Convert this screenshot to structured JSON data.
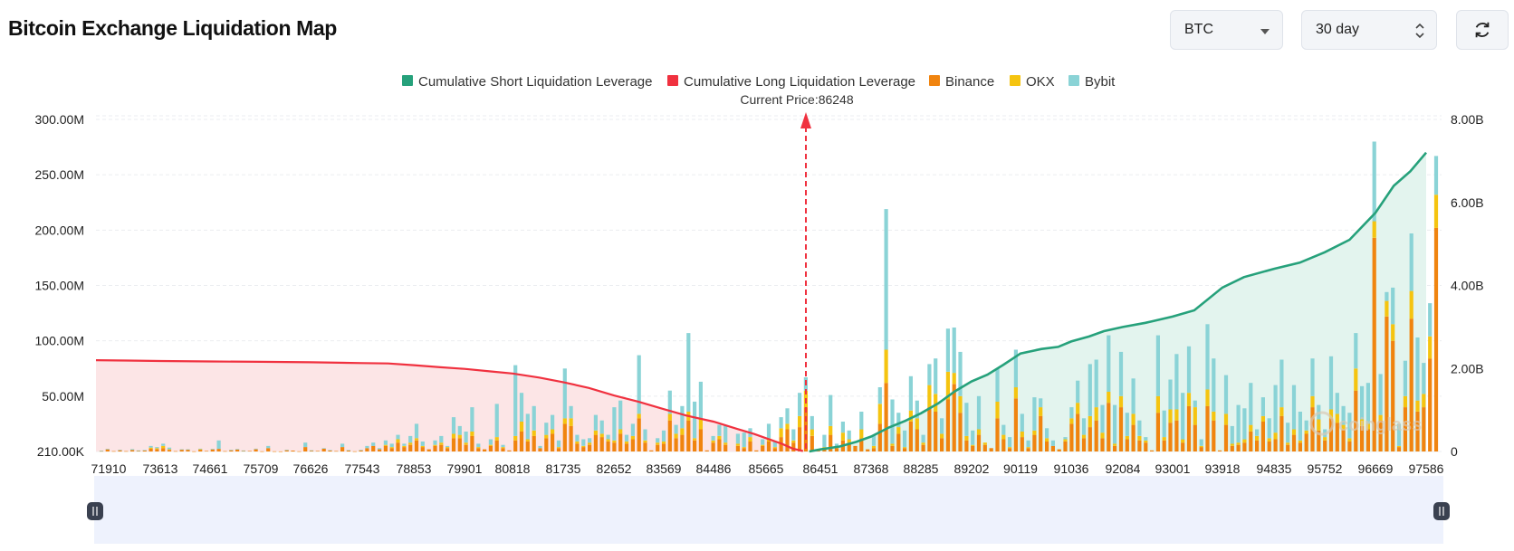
{
  "header": {
    "title": "Bitcoin Exchange Liquidation Map"
  },
  "controls": {
    "asset": "BTC",
    "period": "30 day",
    "refresh_icon": "refresh-icon"
  },
  "legend": [
    {
      "label": "Cumulative Short Liquidation Leverage",
      "color": "#26a17b"
    },
    {
      "label": "Cumulative Long Liquidation Leverage",
      "color": "#f0313f"
    },
    {
      "label": "Binance",
      "color": "#f0840f"
    },
    {
      "label": "OKX",
      "color": "#f5c410"
    },
    {
      "label": "Bybit",
      "color": "#8ad3d6"
    }
  ],
  "current_price_label": "Current Price:86248",
  "watermark": "coinglass",
  "chart_data": {
    "type": "bar",
    "x_tick_labels": [
      "71910",
      "73613",
      "74661",
      "75709",
      "76626",
      "77543",
      "78853",
      "79901",
      "80818",
      "81735",
      "82652",
      "83569",
      "84486",
      "85665",
      "86451",
      "87368",
      "88285",
      "89202",
      "90119",
      "91036",
      "92084",
      "93001",
      "93918",
      "94835",
      "95752",
      "96669",
      "97586"
    ],
    "left_axis_labels": [
      "210.00K",
      "50.00M",
      "100.00M",
      "150.00M",
      "200.00M",
      "250.00M",
      "300.00M"
    ],
    "right_axis_labels": [
      "0",
      "2.00B",
      "4.00B",
      "6.00B",
      "8.00B"
    ],
    "left_ylim": [
      0,
      300
    ],
    "left_unit": "M",
    "right_ylim": [
      0,
      8
    ],
    "right_unit": "B",
    "current_price": 86248,
    "bars": [
      [
        0.4,
        0,
        0.3
      ],
      [
        2,
        0,
        0.4
      ],
      [
        0.3,
        0,
        0
      ],
      [
        1.1,
        0,
        0.5
      ],
      [
        0.3,
        0,
        0
      ],
      [
        1.3,
        0,
        0.8
      ],
      [
        0.7,
        0,
        0.3
      ],
      [
        0.9,
        0,
        0.4
      ],
      [
        2.5,
        1,
        1.5
      ],
      [
        2,
        1,
        1
      ],
      [
        3,
        2,
        2
      ],
      [
        1.5,
        0.5,
        1.5
      ],
      [
        0.3,
        0,
        0
      ],
      [
        1.7,
        0,
        0.3
      ],
      [
        1.7,
        0,
        0.3
      ],
      [
        0.2,
        0,
        0
      ],
      [
        1.6,
        0.4,
        0.5
      ],
      [
        0.5,
        0,
        0
      ],
      [
        1.9,
        0,
        0.5
      ],
      [
        2.4,
        0,
        7.6
      ],
      [
        0.3,
        0,
        0
      ],
      [
        1.2,
        0,
        0.3
      ],
      [
        2,
        0,
        0.2
      ],
      [
        0.7,
        0,
        0.2
      ],
      [
        0.5,
        0,
        0
      ],
      [
        2,
        0,
        0.5
      ],
      [
        0.2,
        0,
        0
      ],
      [
        3,
        0,
        2
      ],
      [
        0.2,
        0,
        0
      ],
      [
        0.1,
        0,
        0
      ],
      [
        1.3,
        0,
        0.2
      ],
      [
        0.8,
        0,
        0
      ],
      [
        0.2,
        0,
        0
      ],
      [
        4,
        0,
        4
      ],
      [
        0.9,
        0,
        0.2
      ],
      [
        0.5,
        0,
        0
      ],
      [
        2.5,
        0,
        0.5
      ],
      [
        1.1,
        0,
        0.2
      ],
      [
        0.4,
        0,
        0
      ],
      [
        4,
        0,
        3
      ],
      [
        1,
        0,
        0.3
      ],
      [
        0.2,
        0,
        0
      ],
      [
        1.2,
        0,
        0.2
      ],
      [
        3,
        0,
        2
      ],
      [
        5,
        0,
        3
      ],
      [
        2,
        0,
        1
      ],
      [
        5,
        1,
        4
      ],
      [
        3,
        1,
        3
      ],
      [
        8,
        3,
        4
      ],
      [
        4,
        1,
        2
      ],
      [
        6,
        2,
        6
      ],
      [
        10,
        2,
        13
      ],
      [
        4,
        1,
        4
      ],
      [
        2,
        0,
        0
      ],
      [
        5,
        1,
        4
      ],
      [
        6,
        2,
        6
      ],
      [
        3,
        1,
        1
      ],
      [
        12,
        4,
        15
      ],
      [
        12,
        3,
        8
      ],
      [
        6,
        2,
        10
      ],
      [
        14,
        4,
        22
      ],
      [
        3,
        1,
        3
      ],
      [
        2,
        0,
        0
      ],
      [
        5,
        1,
        5
      ],
      [
        10,
        3,
        30
      ],
      [
        3,
        1,
        2
      ],
      [
        1,
        0,
        0
      ],
      [
        10,
        4,
        64
      ],
      [
        18,
        9,
        26
      ],
      [
        9,
        2,
        23
      ],
      [
        14,
        5,
        22
      ],
      [
        3,
        0,
        2
      ],
      [
        12,
        3,
        11
      ],
      [
        16,
        4,
        13
      ],
      [
        3,
        1,
        6
      ],
      [
        25,
        5,
        45
      ],
      [
        23,
        7,
        11
      ],
      [
        7,
        2,
        6
      ],
      [
        4,
        1,
        6
      ],
      [
        6,
        2,
        4
      ],
      [
        15,
        4,
        14
      ],
      [
        13,
        3,
        12
      ],
      [
        9,
        2,
        4
      ],
      [
        8,
        2,
        30
      ],
      [
        16,
        4,
        26
      ],
      [
        7,
        2,
        6
      ],
      [
        11,
        3,
        11
      ],
      [
        30,
        4,
        53
      ],
      [
        8,
        2,
        10
      ],
      [
        1,
        0,
        0
      ],
      [
        6,
        2,
        4
      ],
      [
        7,
        2,
        10
      ],
      [
        28,
        6,
        21
      ],
      [
        12,
        4,
        8
      ],
      [
        15,
        6,
        20
      ],
      [
        28,
        8,
        71
      ],
      [
        10,
        2,
        33
      ],
      [
        20,
        10,
        33
      ],
      [
        1,
        0,
        0
      ],
      [
        8,
        2,
        4
      ],
      [
        11,
        3,
        10
      ],
      [
        6,
        2,
        16
      ],
      [
        0,
        0,
        0
      ],
      [
        5,
        2,
        9
      ],
      [
        3,
        1,
        13
      ],
      [
        9,
        4,
        8
      ],
      [
        1,
        0,
        0
      ],
      [
        5,
        1,
        5
      ],
      [
        9,
        3,
        13
      ],
      [
        3,
        1,
        5
      ],
      [
        13,
        8,
        10
      ],
      [
        20,
        5,
        14
      ],
      [
        8,
        2,
        10
      ],
      [
        22,
        10,
        21
      ],
      [
        40,
        15,
        12
      ],
      [
        14,
        6,
        12
      ],
      [
        1,
        0,
        0
      ],
      [
        3,
        1,
        11
      ],
      [
        15,
        8,
        28
      ],
      [
        3,
        1,
        3
      ],
      [
        10,
        7,
        10
      ],
      [
        8,
        3,
        8
      ],
      [
        5,
        0,
        0
      ],
      [
        12,
        8,
        16
      ],
      [
        2,
        0,
        0
      ],
      [
        3,
        2,
        10
      ],
      [
        25,
        18,
        15
      ],
      [
        62,
        30,
        127
      ],
      [
        5,
        2,
        40
      ],
      [
        16,
        6,
        13
      ],
      [
        3,
        1,
        15
      ],
      [
        27,
        10,
        31
      ],
      [
        20,
        10,
        16
      ],
      [
        6,
        2,
        7
      ],
      [
        40,
        20,
        19
      ],
      [
        36,
        16,
        32
      ],
      [
        12,
        4,
        14
      ],
      [
        47,
        25,
        39
      ],
      [
        61,
        10,
        41
      ],
      [
        35,
        15,
        40
      ],
      [
        10,
        4,
        30
      ],
      [
        5,
        1,
        13
      ],
      [
        15,
        5,
        30
      ],
      [
        6,
        2,
        0
      ],
      [
        3,
        0,
        0
      ],
      [
        30,
        15,
        30
      ],
      [
        11,
        4,
        9
      ],
      [
        3,
        1,
        9
      ],
      [
        48,
        10,
        34
      ],
      [
        13,
        5,
        16
      ],
      [
        3,
        1,
        6
      ],
      [
        15,
        4,
        30
      ],
      [
        32,
        8,
        8
      ],
      [
        9,
        3,
        9
      ],
      [
        5,
        0,
        5
      ],
      [
        2,
        0,
        0
      ],
      [
        9,
        2,
        2
      ],
      [
        25,
        5,
        10
      ],
      [
        34,
        10,
        20
      ],
      [
        12,
        3,
        15
      ],
      [
        22,
        10,
        47
      ],
      [
        28,
        12,
        43
      ],
      [
        12,
        5,
        25
      ],
      [
        44,
        10,
        51
      ],
      [
        5,
        2,
        35
      ],
      [
        40,
        10,
        40
      ],
      [
        11,
        3,
        21
      ],
      [
        24,
        10,
        32
      ],
      [
        10,
        4,
        14
      ],
      [
        8,
        2,
        3
      ],
      [
        1,
        0,
        0
      ],
      [
        35,
        15,
        55
      ],
      [
        10,
        3,
        24
      ],
      [
        26,
        12,
        27
      ],
      [
        28,
        10,
        50
      ],
      [
        8,
        3,
        42
      ],
      [
        41,
        12,
        42
      ],
      [
        24,
        16,
        6
      ],
      [
        4,
        1,
        6
      ],
      [
        41,
        15,
        59
      ],
      [
        28,
        8,
        48
      ],
      [
        1,
        0,
        0
      ],
      [
        24,
        10,
        35
      ],
      [
        5,
        2,
        16
      ],
      [
        6,
        2,
        34
      ],
      [
        8,
        3,
        28
      ],
      [
        18,
        6,
        38
      ],
      [
        10,
        4,
        6
      ],
      [
        27,
        5,
        17
      ],
      [
        9,
        3,
        18
      ],
      [
        11,
        6,
        43
      ],
      [
        32,
        8,
        43
      ],
      [
        6,
        2,
        18
      ],
      [
        15,
        5,
        40
      ],
      [
        8,
        2,
        26
      ],
      [
        16,
        3,
        9
      ],
      [
        40,
        10,
        34
      ],
      [
        19,
        10,
        13
      ],
      [
        10,
        3,
        7
      ],
      [
        30,
        8,
        48
      ],
      [
        26,
        8,
        19
      ],
      [
        20,
        4,
        17
      ],
      [
        9,
        3,
        23
      ],
      [
        55,
        20,
        32
      ],
      [
        23,
        6,
        30
      ],
      [
        20,
        5,
        37
      ],
      [
        193,
        15,
        72
      ],
      [
        28,
        5,
        37
      ],
      [
        122,
        14,
        8
      ],
      [
        100,
        15,
        33
      ],
      [
        4,
        1,
        20
      ],
      [
        40,
        10,
        32
      ],
      [
        120,
        25,
        52
      ],
      [
        36,
        10,
        57
      ],
      [
        40,
        12,
        28
      ],
      [
        84,
        20,
        30
      ],
      [
        202,
        30,
        35
      ]
    ],
    "long_cumulative_B": [
      [
        71910,
        2.2
      ],
      [
        72500,
        2.19
      ],
      [
        73613,
        2.18
      ],
      [
        74661,
        2.17
      ],
      [
        75709,
        2.16
      ],
      [
        76626,
        2.15
      ],
      [
        77543,
        2.13
      ],
      [
        78200,
        2.12
      ],
      [
        78853,
        2.08
      ],
      [
        79400,
        2.03
      ],
      [
        79901,
        1.99
      ],
      [
        80400,
        1.93
      ],
      [
        80818,
        1.88
      ],
      [
        81300,
        1.78
      ],
      [
        81735,
        1.67
      ],
      [
        82200,
        1.53
      ],
      [
        82652,
        1.35
      ],
      [
        83100,
        1.2
      ],
      [
        83569,
        1.02
      ],
      [
        84000,
        0.86
      ],
      [
        84486,
        0.72
      ],
      [
        85000,
        0.55
      ],
      [
        85400,
        0.42
      ],
      [
        85665,
        0.32
      ],
      [
        85900,
        0.18
      ],
      [
        86050,
        0.07
      ],
      [
        86200,
        0.01
      ]
    ],
    "short_cumulative_B": [
      [
        86290,
        0.0
      ],
      [
        86451,
        0.05
      ],
      [
        86800,
        0.12
      ],
      [
        87100,
        0.23
      ],
      [
        87368,
        0.36
      ],
      [
        87700,
        0.58
      ],
      [
        88000,
        0.74
      ],
      [
        88285,
        0.92
      ],
      [
        88600,
        1.16
      ],
      [
        88900,
        1.45
      ],
      [
        89202,
        1.69
      ],
      [
        89500,
        1.85
      ],
      [
        89800,
        2.09
      ],
      [
        90119,
        2.36
      ],
      [
        90500,
        2.47
      ],
      [
        90800,
        2.52
      ],
      [
        91036,
        2.65
      ],
      [
        91400,
        2.77
      ],
      [
        91700,
        2.9
      ],
      [
        92084,
        3.0
      ],
      [
        92500,
        3.1
      ],
      [
        93001,
        3.25
      ],
      [
        93400,
        3.4
      ],
      [
        93918,
        3.95
      ],
      [
        94300,
        4.2
      ],
      [
        94835,
        4.4
      ],
      [
        95300,
        4.55
      ],
      [
        95752,
        4.8
      ],
      [
        96200,
        5.1
      ],
      [
        96669,
        5.75
      ],
      [
        97000,
        6.4
      ],
      [
        97300,
        6.75
      ],
      [
        97586,
        7.2
      ]
    ]
  }
}
